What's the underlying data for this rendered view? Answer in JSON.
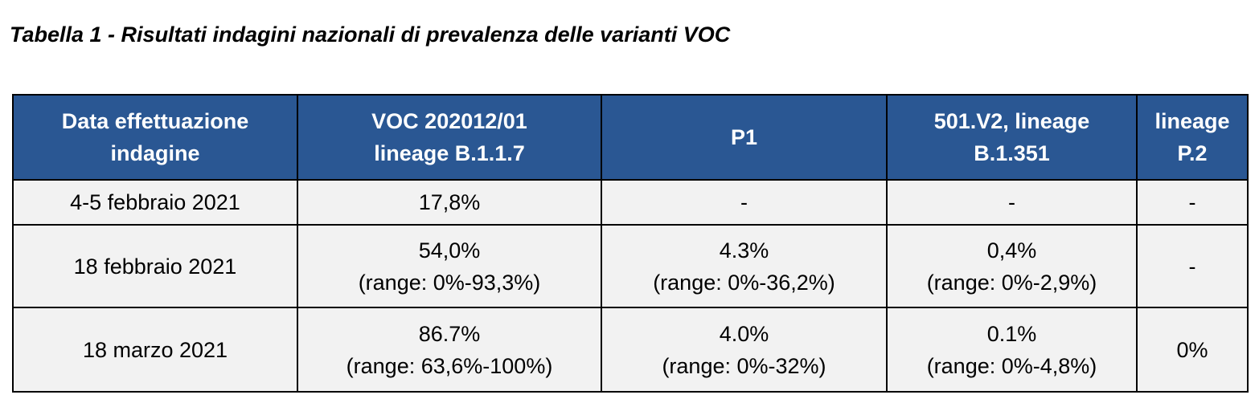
{
  "caption": "Tabella 1 - Risultati indagini nazionali di prevalenza delle varianti VOC",
  "table": {
    "headers": [
      [
        "Data effettuazione",
        "indagine"
      ],
      [
        "VOC 202012/01",
        "lineage B.1.1.7"
      ],
      [
        "P1"
      ],
      [
        "501.V2, lineage",
        "B.1.351"
      ],
      [
        "lineage",
        "P.2"
      ]
    ],
    "rows": [
      {
        "date": "4-5 febbraio 2021",
        "voc": {
          "value": "17,8%",
          "range": ""
        },
        "p1": {
          "value": "-",
          "range": ""
        },
        "v2": {
          "value": "-",
          "range": ""
        },
        "p2": "-"
      },
      {
        "date": "18 febbraio 2021",
        "voc": {
          "value": "54,0%",
          "range": "(range: 0%-93,3%)"
        },
        "p1": {
          "value": "4.3%",
          "range": "(range: 0%-36,2%)"
        },
        "v2": {
          "value": "0,4%",
          "range": "(range: 0%-2,9%)"
        },
        "p2": "-"
      },
      {
        "date": "18 marzo 2021",
        "voc": {
          "value": "86.7%",
          "range": "(range: 63,6%-100%)"
        },
        "p1": {
          "value": "4.0%",
          "range": "(range: 0%-32%)"
        },
        "v2": {
          "value": "0.1%",
          "range": "(range: 0%-4,8%)"
        },
        "p2": "0%"
      }
    ]
  }
}
